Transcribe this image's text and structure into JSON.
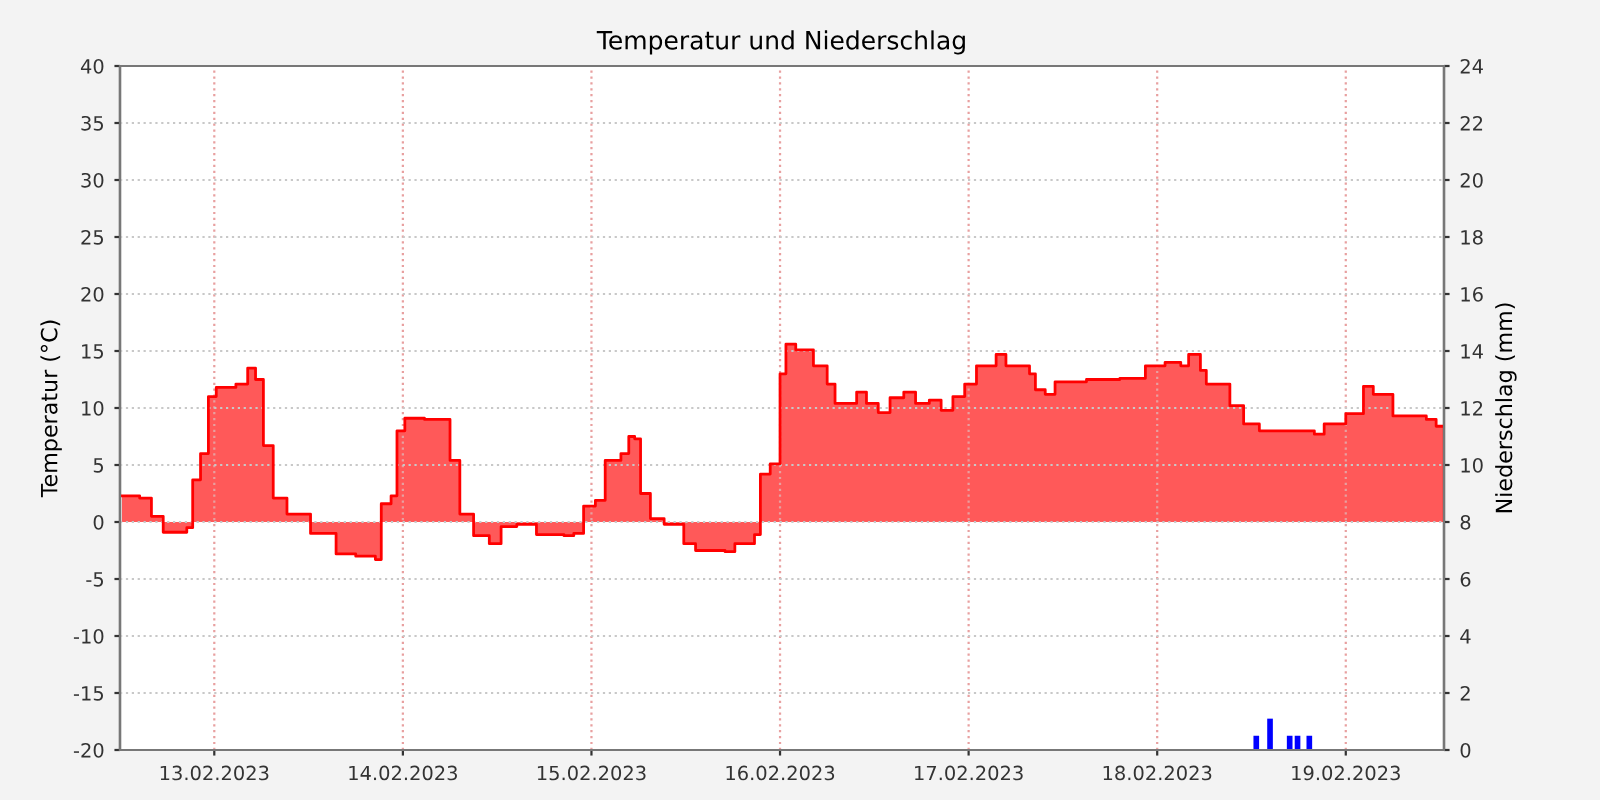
{
  "chart_data": {
    "type": "area",
    "title": "Temperatur und Niederschlag",
    "ylabel": "Temperatur (°C)",
    "y2label": "Niederschlag (mm)",
    "xlim": [
      "2023-02-12T12:00",
      "2023-02-19T12:30"
    ],
    "xticks": [
      {
        "value": "2023-02-13",
        "label": "13.02.2023"
      },
      {
        "value": "2023-02-14",
        "label": "14.02.2023"
      },
      {
        "value": "2023-02-15",
        "label": "15.02.2023"
      },
      {
        "value": "2023-02-16",
        "label": "16.02.2023"
      },
      {
        "value": "2023-02-17",
        "label": "17.02.2023"
      },
      {
        "value": "2023-02-18",
        "label": "18.02.2023"
      },
      {
        "value": "2023-02-19",
        "label": "19.02.2023"
      }
    ],
    "ylim": [
      -20,
      40
    ],
    "yticks": [
      -20,
      -15,
      -10,
      -5,
      0,
      5,
      10,
      15,
      20,
      25,
      30,
      35,
      40
    ],
    "y2lim": [
      0,
      24
    ],
    "y2ticks": [
      0,
      2,
      4,
      6,
      8,
      10,
      12,
      14,
      16,
      18,
      20,
      22,
      24
    ],
    "grid": true,
    "series": [
      {
        "color": "#ff0000",
        "x": [
          "2023-02-12T12:15",
          "2023-02-12T14:30",
          "2023-02-12T16:00",
          "2023-02-12T17:30",
          "2023-02-12T20:30",
          "2023-02-12T21:15",
          "2023-02-12T22:15",
          "2023-02-12T23:15",
          "2023-02-13T00:15",
          "2023-02-13T02:45",
          "2023-02-13T04:15",
          "2023-02-13T05:15",
          "2023-02-13T06:15",
          "2023-02-13T07:30",
          "2023-02-13T09:15",
          "2023-02-13T12:15",
          "2023-02-13T15:30",
          "2023-02-13T18:00",
          "2023-02-13T20:30",
          "2023-02-13T21:15",
          "2023-02-13T22:30",
          "2023-02-13T23:15",
          "2023-02-14T00:15",
          "2023-02-14T02:45",
          "2023-02-14T05:15",
          "2023-02-14T06:00",
          "2023-02-14T07:15",
          "2023-02-14T09:00",
          "2023-02-14T11:00",
          "2023-02-14T12:30",
          "2023-02-14T14:30",
          "2023-02-14T17:00",
          "2023-02-14T20:30",
          "2023-02-14T21:45",
          "2023-02-14T23:00",
          "2023-02-15T00:30",
          "2023-02-15T01:45",
          "2023-02-15T03:45",
          "2023-02-15T04:45",
          "2023-02-15T05:30",
          "2023-02-15T06:15",
          "2023-02-15T07:30",
          "2023-02-15T09:15",
          "2023-02-15T11:45",
          "2023-02-15T13:15",
          "2023-02-15T17:00",
          "2023-02-15T18:15",
          "2023-02-15T20:45",
          "2023-02-15T21:30",
          "2023-02-15T22:45",
          "2023-02-16T00:00",
          "2023-02-16T00:45",
          "2023-02-16T02:00",
          "2023-02-16T04:15",
          "2023-02-16T06:00",
          "2023-02-16T07:00",
          "2023-02-16T08:30",
          "2023-02-16T09:45",
          "2023-02-16T11:00",
          "2023-02-16T12:30",
          "2023-02-16T14:00",
          "2023-02-16T15:45",
          "2023-02-16T17:15",
          "2023-02-16T19:00",
          "2023-02-16T20:30",
          "2023-02-16T22:00",
          "2023-02-16T23:30",
          "2023-02-17T01:00",
          "2023-02-17T03:30",
          "2023-02-17T04:45",
          "2023-02-17T07:45",
          "2023-02-17T08:30",
          "2023-02-17T09:45",
          "2023-02-17T11:00",
          "2023-02-17T15:00",
          "2023-02-17T19:15",
          "2023-02-17T22:30",
          "2023-02-18T01:00",
          "2023-02-18T03:00",
          "2023-02-18T04:00",
          "2023-02-18T05:30",
          "2023-02-18T06:15",
          "2023-02-18T09:15",
          "2023-02-18T11:00",
          "2023-02-18T13:00",
          "2023-02-18T16:30",
          "2023-02-18T20:00",
          "2023-02-18T21:15",
          "2023-02-19T00:00",
          "2023-02-19T02:15",
          "2023-02-19T03:30",
          "2023-02-19T06:00",
          "2023-02-19T10:15",
          "2023-02-19T11:30",
          "2023-02-19T12:30"
        ],
        "values": [
          2.3,
          2.1,
          0.5,
          -0.9,
          -0.5,
          3.7,
          6,
          11,
          11.8,
          12.1,
          13.5,
          12.5,
          6.7,
          2.1,
          0.7,
          -1,
          -2.8,
          -3,
          -3.3,
          1.6,
          2.3,
          8,
          9.1,
          9,
          9,
          5.4,
          0.7,
          -1.2,
          -1.9,
          -0.4,
          -0.2,
          -1.1,
          -1.2,
          -1,
          1.4,
          1.9,
          5.4,
          6,
          7.5,
          7.3,
          2.5,
          0.3,
          -0.2,
          -1.9,
          -2.5,
          -2.6,
          -1.9,
          -1.1,
          4.2,
          5.1,
          13,
          15.6,
          15.1,
          13.7,
          12.1,
          10.4,
          10.4,
          11.4,
          10.4,
          9.6,
          10.9,
          11.4,
          10.4,
          10.7,
          9.8,
          11,
          12.1,
          13.7,
          14.7,
          13.7,
          13,
          11.6,
          11.2,
          12.3,
          12.5,
          12.6,
          13.7,
          14,
          13.7,
          14.7,
          13.3,
          12.1,
          10.2,
          8.6,
          8,
          8,
          7.7,
          8.6,
          9.5,
          11.9,
          11.2,
          9.3,
          9,
          8.4,
          8.4
        ]
      },
      {
        "type": "bar",
        "axis": "y2",
        "color": "#0000ff",
        "x": [
          "2023-02-18T12:15",
          "2023-02-18T14:00",
          "2023-02-18T16:30",
          "2023-02-18T17:30",
          "2023-02-18T19:00"
        ],
        "values": [
          0.5,
          1.1,
          0.5,
          0.5,
          0.5
        ]
      }
    ]
  }
}
